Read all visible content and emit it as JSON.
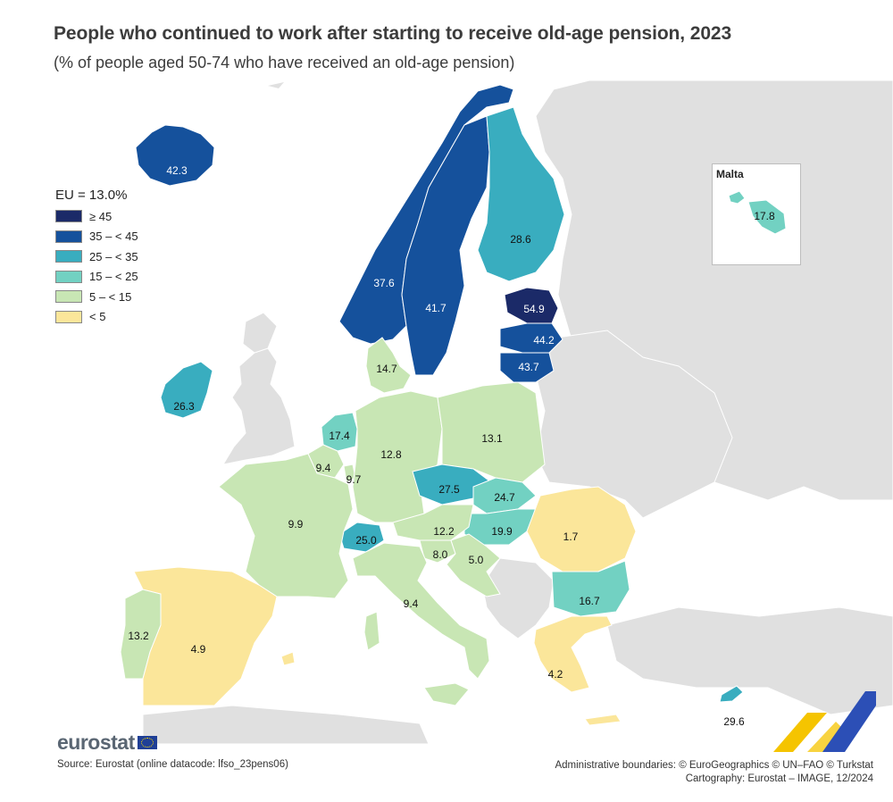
{
  "title": "People who continued to work after starting to receive old-age pension, 2023",
  "subtitle": "(% of people aged 50-74 who have received an old-age pension)",
  "legend": {
    "eu_label": "EU = 13.0%",
    "classes": [
      {
        "label": "≥ 45",
        "color": "#1b2a68"
      },
      {
        "label": "35 – < 45",
        "color": "#15519c"
      },
      {
        "label": "25 – < 35",
        "color": "#39adbf"
      },
      {
        "label": "15 – < 25",
        "color": "#72d1c2"
      },
      {
        "label": "5 – < 15",
        "color": "#c8e6b4"
      },
      {
        "label": "< 5",
        "color": "#fbe69a"
      }
    ]
  },
  "inset": {
    "title": "Malta"
  },
  "countries": [
    {
      "name": "Iceland",
      "value": "42.3",
      "class": 1
    },
    {
      "name": "Norway",
      "value": "37.6",
      "class": 1
    },
    {
      "name": "Sweden",
      "value": "41.7",
      "class": 1
    },
    {
      "name": "Finland",
      "value": "28.6",
      "class": 2
    },
    {
      "name": "Estonia",
      "value": "54.9",
      "class": 0
    },
    {
      "name": "Latvia",
      "value": "44.2",
      "class": 1
    },
    {
      "name": "Lithuania",
      "value": "43.7",
      "class": 1
    },
    {
      "name": "Denmark",
      "value": "14.7",
      "class": 4
    },
    {
      "name": "Ireland",
      "value": "26.3",
      "class": 2
    },
    {
      "name": "Netherlands",
      "value": "17.4",
      "class": 3
    },
    {
      "name": "Belgium",
      "value": "9.4",
      "class": 4
    },
    {
      "name": "Luxembourg",
      "value": "9.7",
      "class": 4
    },
    {
      "name": "Germany",
      "value": "12.8",
      "class": 4
    },
    {
      "name": "Poland",
      "value": "13.1",
      "class": 4
    },
    {
      "name": "Czechia",
      "value": "27.5",
      "class": 2
    },
    {
      "name": "Slovakia",
      "value": "24.7",
      "class": 3
    },
    {
      "name": "Hungary",
      "value": "19.9",
      "class": 3
    },
    {
      "name": "Austria",
      "value": "12.2",
      "class": 4
    },
    {
      "name": "Switzerland",
      "value": "25.0",
      "class": 2
    },
    {
      "name": "France",
      "value": "9.9",
      "class": 4
    },
    {
      "name": "Slovenia",
      "value": "8.0",
      "class": 4
    },
    {
      "name": "Croatia",
      "value": "5.0",
      "class": 4
    },
    {
      "name": "Romania",
      "value": "1.7",
      "class": 5
    },
    {
      "name": "Bulgaria",
      "value": "16.7",
      "class": 3
    },
    {
      "name": "Italy",
      "value": "9.4",
      "class": 4
    },
    {
      "name": "Portugal",
      "value": "13.2",
      "class": 4
    },
    {
      "name": "Spain",
      "value": "4.9",
      "class": 5
    },
    {
      "name": "Greece",
      "value": "4.2",
      "class": 5
    },
    {
      "name": "Malta",
      "value": "17.8",
      "class": 3
    },
    {
      "name": "Cyprus",
      "value": "29.6",
      "class": 2
    }
  ],
  "colors": {
    "no_data": "#e0e0e0",
    "sea": "#ffffff",
    "border": "#ffffff"
  },
  "branding": {
    "logo": "eurostat"
  },
  "source": "Source: Eurostat (online datacode: lfso_23pens06)",
  "credits": {
    "line1": "Administrative boundaries: © EuroGeographics © UN–FAO © Turkstat",
    "line2": "Cartography: Eurostat – IMAGE, 12/2024"
  }
}
